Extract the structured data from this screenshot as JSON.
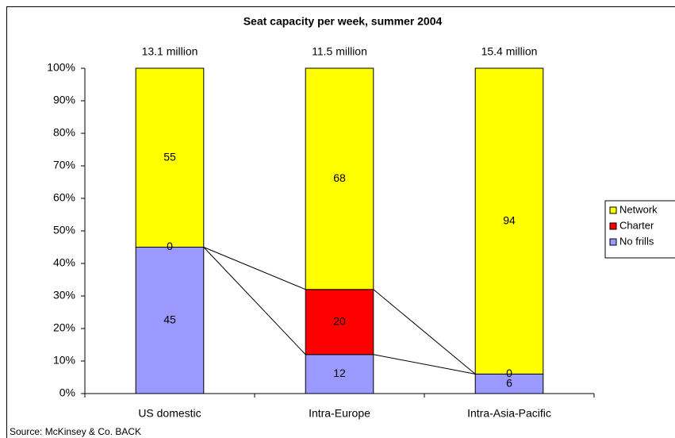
{
  "chart_data": {
    "type": "stacked_bar_100",
    "title": "Seat capacity per week, summer 2004",
    "categories": [
      "US domestic",
      "Intra-Europe",
      "Intra-Asia-Pacific"
    ],
    "annotations": [
      "13.1 million",
      "11.5 million",
      "15.4 million"
    ],
    "series": [
      {
        "name": "No frills",
        "color": "#9999ff",
        "values": [
          45,
          12,
          6
        ]
      },
      {
        "name": "Charter",
        "color": "#ff0000",
        "values": [
          0,
          20,
          0
        ]
      },
      {
        "name": "Network",
        "color": "#ffff00",
        "values": [
          55,
          68,
          94
        ]
      }
    ],
    "ylim": [
      0,
      100
    ],
    "yticks": [
      {
        "value": 0,
        "label": "0%"
      },
      {
        "value": 10,
        "label": "10%"
      },
      {
        "value": 20,
        "label": "20%"
      },
      {
        "value": 30,
        "label": "30%"
      },
      {
        "value": 40,
        "label": "40%"
      },
      {
        "value": 50,
        "label": "50%"
      },
      {
        "value": 60,
        "label": "60%"
      },
      {
        "value": 70,
        "label": "70%"
      },
      {
        "value": 80,
        "label": "80%"
      },
      {
        "value": 90,
        "label": "90%"
      },
      {
        "value": 100,
        "label": "100%"
      }
    ],
    "legend": "right",
    "source": "Source: McKinsey & Co. BACK"
  }
}
